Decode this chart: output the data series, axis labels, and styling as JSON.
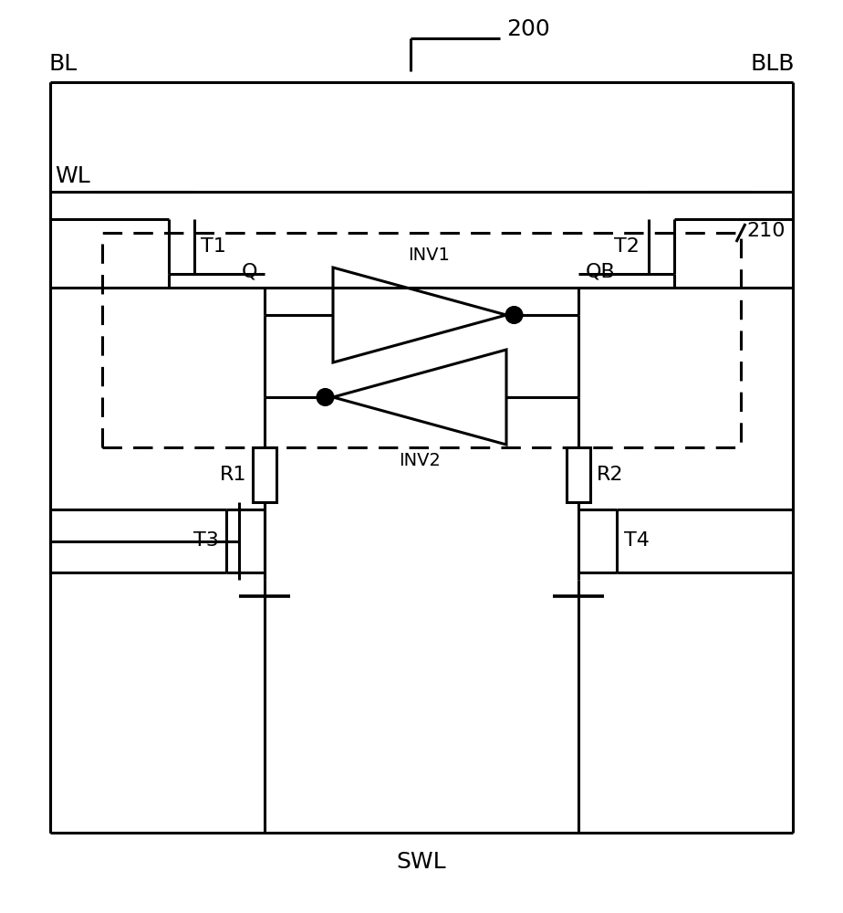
{
  "label_200": "200",
  "label_BL": "BL",
  "label_BLB": "BLB",
  "label_WL": "WL",
  "label_SWL": "SWL",
  "label_Q": "Q",
  "label_QB": "QB",
  "label_T1": "T1",
  "label_T2": "T2",
  "label_T3": "T3",
  "label_T4": "T4",
  "label_R1": "R1",
  "label_R2": "R2",
  "label_INV1": "INV1",
  "label_INV2": "INV2",
  "label_210": "210",
  "line_color": "#000000",
  "bg_color": "#ffffff",
  "lw": 2.2,
  "fs_large": 18,
  "fs_med": 16,
  "fs_small": 14
}
